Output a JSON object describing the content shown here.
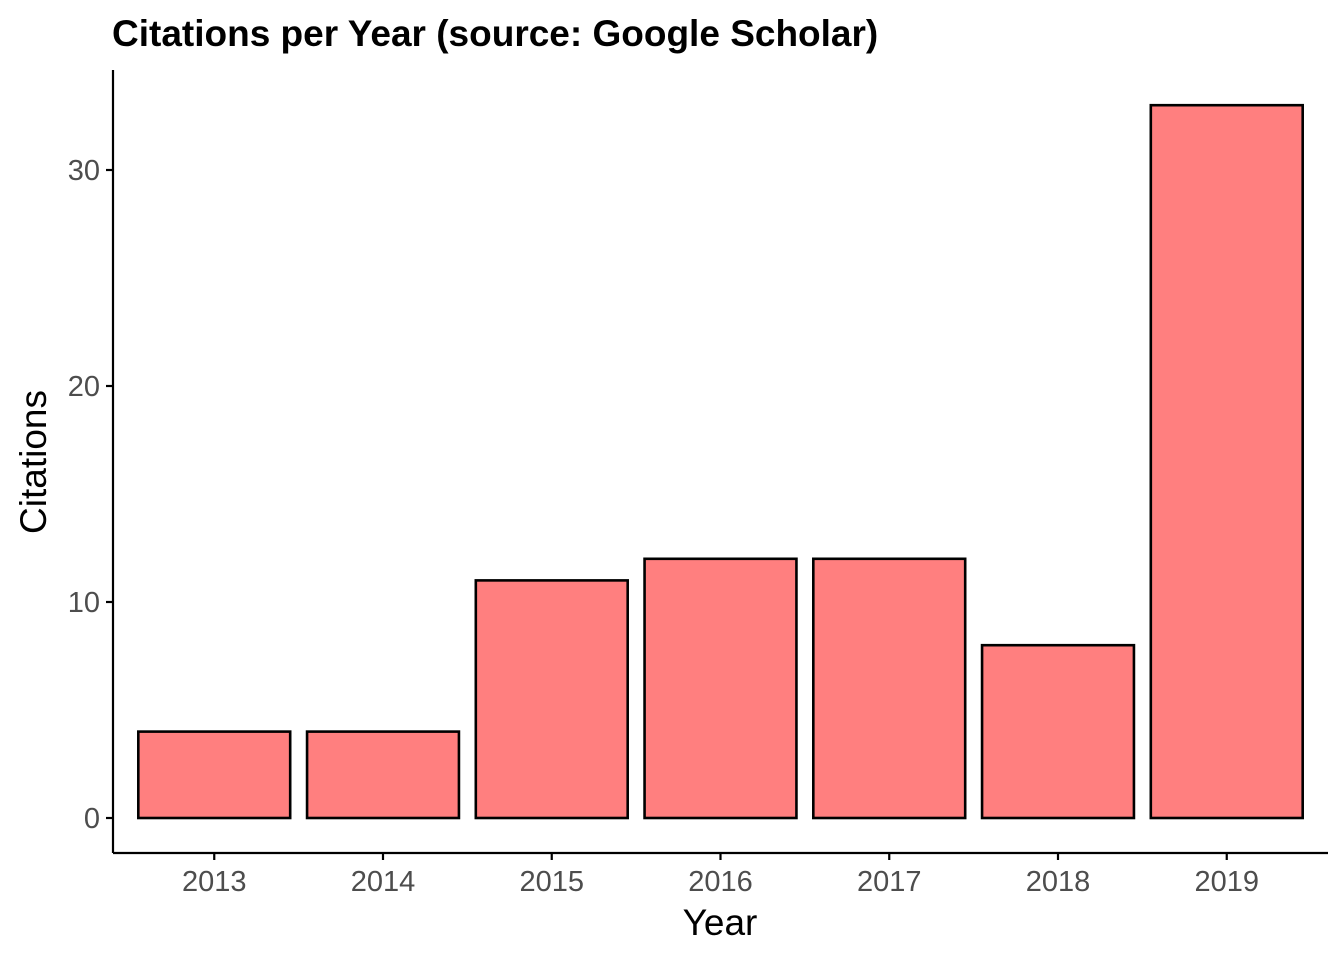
{
  "colors": {
    "bar_fill": "#FF7F7F",
    "bar_outline": "#000000",
    "axis": "#000000",
    "tick_text": "#4D4D4D",
    "background": "#FFFFFF"
  },
  "chart_data": {
    "type": "bar",
    "title": "Citations per Year (source: Google Scholar)",
    "xlabel": "Year",
    "ylabel": "Citations",
    "categories": [
      "2013",
      "2014",
      "2015",
      "2016",
      "2017",
      "2018",
      "2019"
    ],
    "values": [
      4,
      4,
      11,
      12,
      12,
      8,
      33
    ],
    "ylim": [
      0,
      34.65
    ],
    "yticks": [
      0,
      10,
      20,
      30
    ],
    "ytick_labels": [
      "0",
      "10",
      "20",
      "30"
    ],
    "grid": false,
    "legend": "none"
  }
}
